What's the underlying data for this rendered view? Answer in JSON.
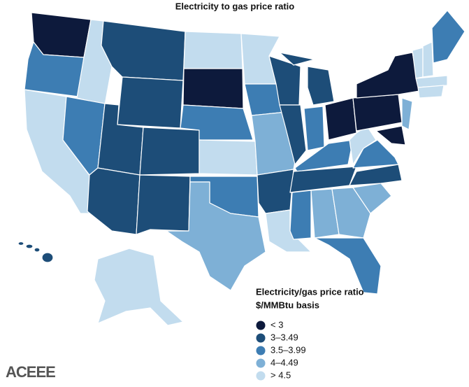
{
  "title": "Electricity to gas price ratio",
  "legend": {
    "title": [
      "Electricity/gas price ratio",
      "$/MMBtu basis"
    ],
    "items": [
      {
        "label": "< 3",
        "color": "#0d1a3c"
      },
      {
        "label": "3–3.49",
        "color": "#1d4d78"
      },
      {
        "label": "3.5–3.99",
        "color": "#3d7db3"
      },
      {
        "label": "4–4.49",
        "color": "#7eb0d6"
      },
      {
        "label": "> 4.5",
        "color": "#c2dcee"
      }
    ]
  },
  "logo": "ACEEE"
}
